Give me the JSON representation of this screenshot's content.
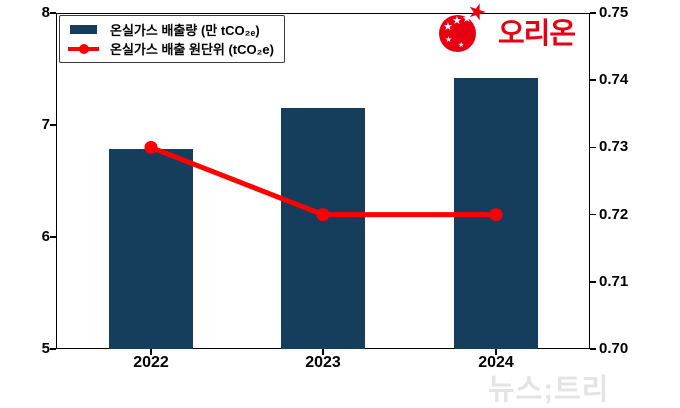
{
  "logo": {
    "text": "오리온",
    "brand_color": "#e60012",
    "icon": "orion-ball-with-stars"
  },
  "watermark": {
    "text": "뉴스;트리",
    "color": "#e4e4e4"
  },
  "legend": {
    "items": [
      {
        "label": "온실가스 배출량 (만 tCO₂ₑ)",
        "swatch": "bar",
        "color": "#153e5c"
      },
      {
        "label": "온실가스 배출 원단위 (tCO₂e)",
        "swatch": "line-marker",
        "color": "#ff0000"
      }
    ],
    "position": "upper-left"
  },
  "chart_data": {
    "type": "bar",
    "subtype": "bar+line dual-axis",
    "categories": [
      "2022",
      "2023",
      "2024"
    ],
    "series": [
      {
        "name": "온실가스 배출량 (만 tCO₂ₑ)",
        "type": "bar",
        "axis": "left",
        "color": "#153e5c",
        "values": [
          6.79,
          7.15,
          7.42
        ]
      },
      {
        "name": "온실가스 배출 원단위 (tCO₂e)",
        "type": "line",
        "axis": "right",
        "color": "#ff0000",
        "marker": "circle",
        "values": [
          0.73,
          0.72,
          0.72
        ]
      }
    ],
    "title": "",
    "xlabel": "",
    "ylabel_left": "",
    "ylabel_right": "",
    "y_left": {
      "min": 5,
      "max": 8,
      "ticks": [
        "5",
        "6",
        "7",
        "8"
      ]
    },
    "y_right": {
      "min": 0.7,
      "max": 0.75,
      "ticks": [
        "0.70",
        "0.71",
        "0.72",
        "0.73",
        "0.74",
        "0.75"
      ]
    },
    "grid": false,
    "legend_position": "upper-left"
  }
}
